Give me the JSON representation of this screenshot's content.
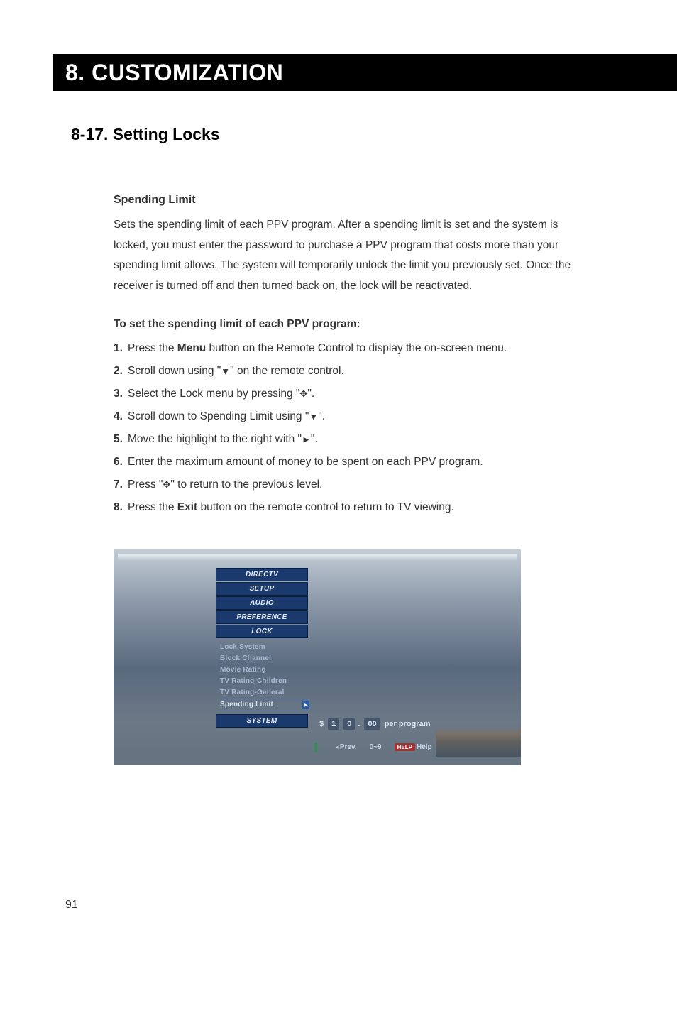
{
  "chapter": {
    "title": "8. CUSTOMIZATION"
  },
  "section": {
    "title": "8-17. Setting Locks"
  },
  "spending": {
    "heading": "Spending Limit",
    "body": "Sets the spending limit of each PPV program.  After a spending limit is set and the system is locked, you must enter the password to purchase a PPV program that costs more than your spending limit allows.  The system will temporarily unlock the limit you previously set.  Once the receiver is turned off and then turned back on, the lock will be reactivated."
  },
  "procedure": {
    "heading": "To set the spending limit of each PPV program:",
    "steps": [
      {
        "n": "1.",
        "pre": "Press the ",
        "bold": "Menu",
        "post": " button on the Remote Control to display the on-screen menu."
      },
      {
        "n": "2.",
        "pre": "Scroll down using \"",
        "sym": "▼",
        "post": "\" on the remote control."
      },
      {
        "n": "3.",
        "pre": "Select the Lock menu by pressing \"",
        "sym": "✥",
        "post": "\"."
      },
      {
        "n": "4.",
        "pre": "Scroll down to Spending Limit using \"",
        "sym": "▼",
        "post": "\"."
      },
      {
        "n": "5.",
        "pre": "Move the highlight to the right with \"",
        "sym": "►",
        "post": "\"."
      },
      {
        "n": "6.",
        "pre": "Enter the maximum amount of money to be spent on each PPV program.",
        "post": ""
      },
      {
        "n": "7.",
        "pre": "Press \"",
        "sym": "✥",
        "post": "\" to return to the previous level."
      },
      {
        "n": "8.",
        "pre": "Press the ",
        "bold": "Exit",
        "post": " button on the remote control to return to TV viewing."
      }
    ]
  },
  "tvscreen": {
    "menu": [
      "DIRECTV",
      "SETUP",
      "AUDIO",
      "PREFERENCE",
      "LOCK"
    ],
    "submenu": [
      "Lock System",
      "Block Channel",
      "Movie Rating",
      "TV Rating-Children",
      "TV Rating-General",
      "Spending Limit"
    ],
    "system": "SYSTEM",
    "value": {
      "dollar": "$",
      "d1": "1",
      "d2": "0",
      "cents": "00",
      "label": "per program"
    },
    "footer": {
      "prev": "Prev.",
      "range": "0~9",
      "help_tag": "HELP",
      "help": "Help"
    }
  },
  "page": {
    "number": "91"
  },
  "colors": {
    "black": "#000000",
    "white": "#ffffff",
    "text": "#333333",
    "menu_bg": "#1a3a6e",
    "menu_border": "#0a1f44",
    "menu_text": "#e4ebf4",
    "sub_text": "#a8b8d0",
    "help_tag": "#a83030",
    "lead_green": "#3a8a5a"
  }
}
